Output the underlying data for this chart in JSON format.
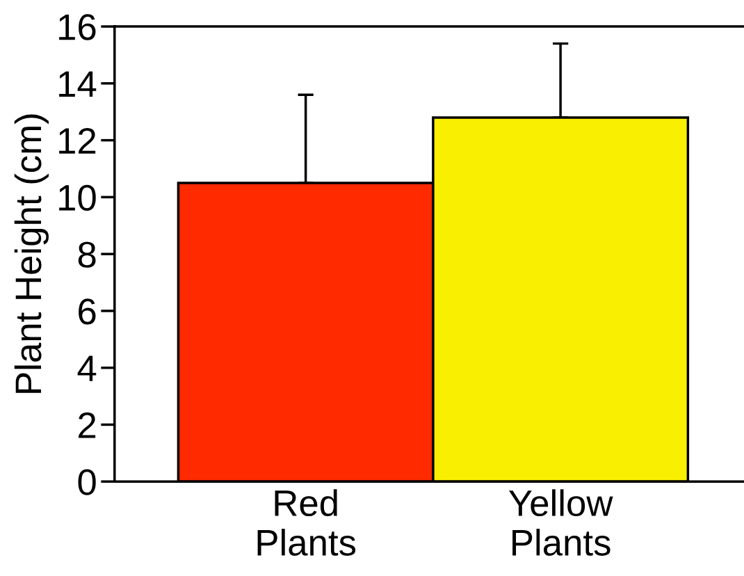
{
  "chart_data": {
    "type": "bar",
    "ylabel": "Plant Height (cm)",
    "categories": [
      "Red\nPlants",
      "Yellow\nPlants"
    ],
    "values": [
      10.5,
      12.8
    ],
    "colors": [
      "#ff2a00",
      "#f9ef00"
    ],
    "errors": [
      [
        10.5,
        13.6
      ],
      [
        12.8,
        15.4
      ]
    ],
    "ylim": [
      0,
      16
    ],
    "yticks": [
      0,
      2,
      4,
      6,
      8,
      10,
      12,
      14,
      16
    ],
    "grid": false,
    "legend": false
  }
}
